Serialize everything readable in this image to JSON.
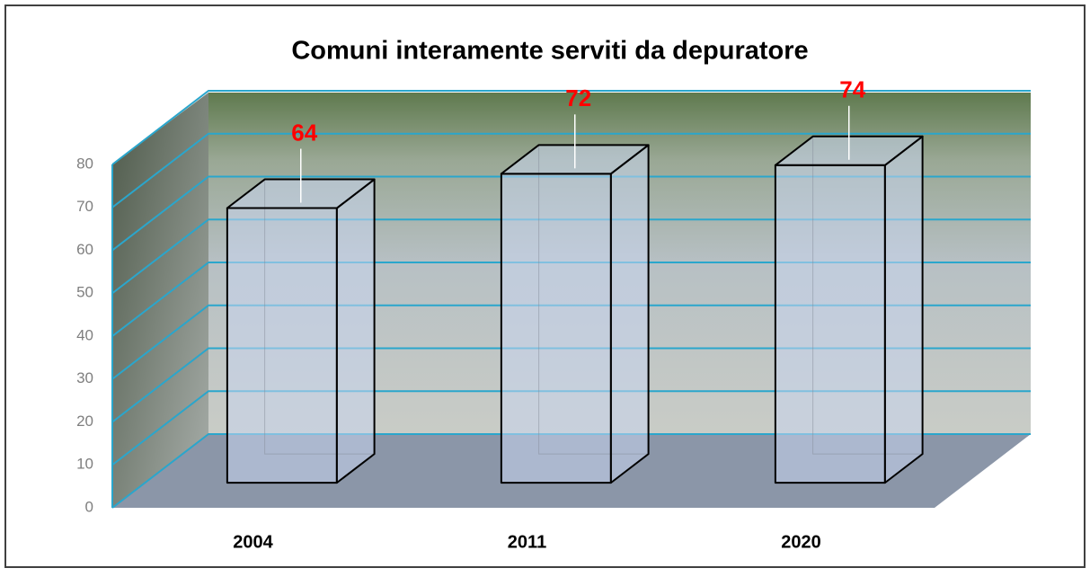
{
  "chart_data": {
    "type": "bar3d",
    "title": "Comuni interamente serviti da depuratore",
    "categories": [
      "2004",
      "2011",
      "2020"
    ],
    "values": [
      64,
      72,
      74
    ],
    "color": "#c9d6ee",
    "label_color": "#ff0000",
    "grid_color": "#2aa6cc",
    "ylim": [
      0,
      80
    ],
    "yticks": [
      0,
      10,
      20,
      30,
      40,
      50,
      60,
      70,
      80
    ],
    "grid": true
  }
}
